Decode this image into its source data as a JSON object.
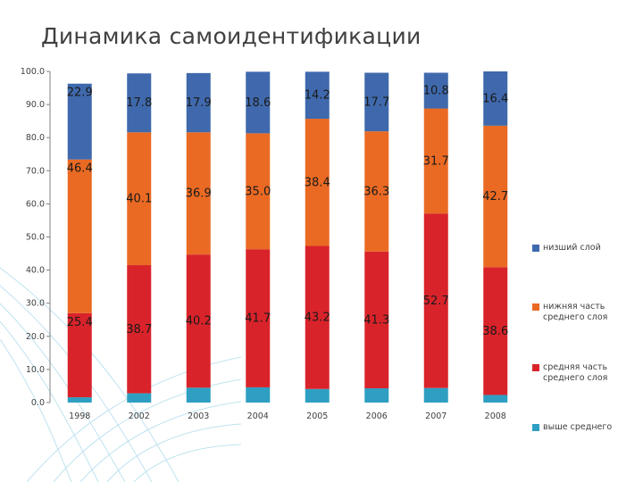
{
  "title": "Динамика самоидентификации",
  "chart_data": {
    "type": "bar",
    "stacked": true,
    "categories": [
      "1998",
      "2002",
      "2003",
      "2004",
      "2005",
      "2006",
      "2007",
      "2008"
    ],
    "ylim": [
      0,
      100
    ],
    "yticks": [
      "0.0",
      "10.0",
      "20.0",
      "30.0",
      "40.0",
      "50.0",
      "60.0",
      "70.0",
      "80.0",
      "90.0",
      "100.0"
    ],
    "series": [
      {
        "name": "выше среднего",
        "color": "#2e9fc2",
        "values": [
          1.6,
          2.8,
          4.5,
          4.6,
          4.1,
          4.3,
          4.4,
          2.3
        ]
      },
      {
        "name": "средняя часть среднего слоя",
        "color": "#d9232a",
        "values": [
          25.4,
          38.7,
          40.2,
          41.7,
          43.2,
          41.3,
          52.7,
          38.6
        ]
      },
      {
        "name": "нижняя часть среднего слоя",
        "color": "#ea6a23",
        "values": [
          46.4,
          40.1,
          36.9,
          35.0,
          38.4,
          36.3,
          31.7,
          42.7
        ]
      },
      {
        "name": "низший слой",
        "color": "#3f69ac",
        "values": [
          22.9,
          17.8,
          17.9,
          18.6,
          14.2,
          17.7,
          10.8,
          16.4
        ]
      }
    ],
    "data_labels": {
      "средняя часть среднего слоя": [
        "25.4",
        "38.7",
        "40.2",
        "41.7",
        "43.2",
        "41.3",
        "52.7",
        "38.6"
      ],
      "нижняя часть среднего слоя": [
        "46.4",
        "40.1",
        "36.9",
        "35.0",
        "38.4",
        "36.3",
        "31.7",
        "42.7"
      ],
      "низший слой": [
        "22.9",
        "17.8",
        "17.9",
        "18.6",
        "14.2",
        "17.7",
        "10.8",
        "16.4"
      ]
    },
    "legend": [
      "низший слой",
      "нижняя часть среднего слоя",
      "средняя часть среднего слоя",
      "выше среднего"
    ],
    "legend_position": "right",
    "grid": false
  }
}
